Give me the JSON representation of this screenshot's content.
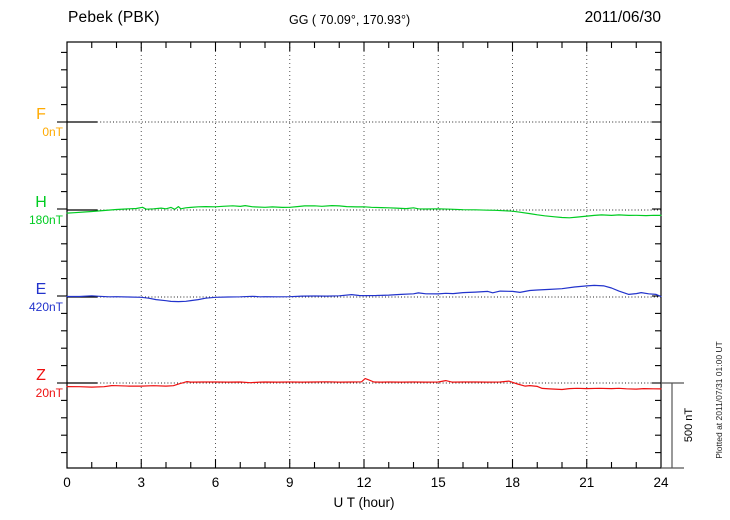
{
  "header": {
    "station_title": "Pebek (PBK)",
    "coords_label": "GG ( 70.09°, 170.93°)",
    "date": "2011/06/30"
  },
  "footer": {
    "plotted_at": "Plotted at 2011/07/31 01:00 UT"
  },
  "chart_data": {
    "type": "line",
    "title": "Pebek (PBK)",
    "subtitle": "GG ( 70.09°, 170.93°)",
    "date": "2011/06/30",
    "xlabel": "U T (hour)",
    "x_range": [
      0,
      24
    ],
    "x_ticks": [
      0,
      3,
      6,
      9,
      12,
      15,
      18,
      21,
      24
    ],
    "grid": "dotted vertical at 3h intervals, dotted horizontal baseline per component",
    "legend_position": "left margin, one colored label per stacked component",
    "scale_bar": {
      "label": "500 nT",
      "value_nT": 500
    },
    "value_note": "points are [hour UT, deviation in nT from that component baseline]",
    "series": [
      {
        "name": "F",
        "baseline_label": "0nT",
        "color": "#FFAA00",
        "points": []
      },
      {
        "name": "H",
        "baseline_label": "180nT",
        "color": "#00CC22",
        "points": [
          [
            0,
            -18
          ],
          [
            0.3,
            -16
          ],
          [
            0.7,
            -12
          ],
          [
            1,
            -9
          ],
          [
            1.5,
            -3
          ],
          [
            2,
            3
          ],
          [
            2.5,
            7
          ],
          [
            2.8,
            9
          ],
          [
            3.05,
            16
          ],
          [
            3.2,
            5
          ],
          [
            3.5,
            7
          ],
          [
            3.8,
            11
          ],
          [
            4,
            7
          ],
          [
            4.2,
            15
          ],
          [
            4.35,
            4
          ],
          [
            4.5,
            20
          ],
          [
            4.6,
            7
          ],
          [
            4.8,
            13
          ],
          [
            5,
            15
          ],
          [
            5.3,
            19
          ],
          [
            5.6,
            20
          ],
          [
            6,
            19
          ],
          [
            6.3,
            22
          ],
          [
            6.7,
            25
          ],
          [
            7,
            21
          ],
          [
            7.2,
            26
          ],
          [
            7.5,
            19
          ],
          [
            8,
            16
          ],
          [
            8.3,
            18
          ],
          [
            8.7,
            15
          ],
          [
            9,
            16
          ],
          [
            9.3,
            20
          ],
          [
            9.6,
            24
          ],
          [
            10,
            25
          ],
          [
            10.3,
            22
          ],
          [
            10.7,
            26
          ],
          [
            11,
            24
          ],
          [
            11.3,
            20
          ],
          [
            11.7,
            18
          ],
          [
            12,
            19
          ],
          [
            12.3,
            16
          ],
          [
            12.7,
            14
          ],
          [
            13,
            13
          ],
          [
            13.3,
            11
          ],
          [
            13.7,
            8
          ],
          [
            14,
            13
          ],
          [
            14.2,
            7
          ],
          [
            14.5,
            6
          ],
          [
            15,
            7
          ],
          [
            15.5,
            5
          ],
          [
            16,
            2
          ],
          [
            16.5,
            1
          ],
          [
            17,
            -1
          ],
          [
            17.3,
            -2
          ],
          [
            17.7,
            -5
          ],
          [
            18,
            -7
          ],
          [
            18.3,
            -13
          ],
          [
            18.7,
            -21
          ],
          [
            19,
            -28
          ],
          [
            19.3,
            -34
          ],
          [
            19.7,
            -40
          ],
          [
            20,
            -44
          ],
          [
            20.3,
            -46
          ],
          [
            20.6,
            -42
          ],
          [
            21,
            -36
          ],
          [
            21.3,
            -32
          ],
          [
            21.6,
            -29
          ],
          [
            22,
            -32
          ],
          [
            22.3,
            -29
          ],
          [
            22.7,
            -32
          ],
          [
            23,
            -31
          ],
          [
            23.4,
            -33
          ],
          [
            23.7,
            -31
          ],
          [
            24,
            -32
          ]
        ]
      },
      {
        "name": "E",
        "baseline_label": "420nT",
        "color": "#2233CC",
        "points": [
          [
            0,
            3
          ],
          [
            0.5,
            3
          ],
          [
            1,
            7
          ],
          [
            1.3,
            4
          ],
          [
            1.7,
            1
          ],
          [
            2,
            2
          ],
          [
            2.5,
            0
          ],
          [
            3,
            -2
          ],
          [
            3.3,
            -7
          ],
          [
            3.6,
            -15
          ],
          [
            4,
            -22
          ],
          [
            4.2,
            -26
          ],
          [
            4.5,
            -27
          ],
          [
            4.8,
            -25
          ],
          [
            5,
            -21
          ],
          [
            5.3,
            -15
          ],
          [
            5.6,
            -7
          ],
          [
            6,
            -2
          ],
          [
            6.5,
            0
          ],
          [
            7,
            1
          ],
          [
            7.5,
            4
          ],
          [
            7.8,
            1
          ],
          [
            8,
            2
          ],
          [
            8.5,
            1
          ],
          [
            9,
            2
          ],
          [
            9.5,
            5
          ],
          [
            10,
            6
          ],
          [
            10.5,
            5
          ],
          [
            11,
            7
          ],
          [
            11.5,
            14
          ],
          [
            11.8,
            9
          ],
          [
            12,
            8
          ],
          [
            12.5,
            9
          ],
          [
            13,
            11
          ],
          [
            13.5,
            15
          ],
          [
            14,
            19
          ],
          [
            14.2,
            24
          ],
          [
            14.5,
            19
          ],
          [
            15,
            18
          ],
          [
            15.3,
            22
          ],
          [
            15.6,
            20
          ],
          [
            16,
            26
          ],
          [
            16.5,
            29
          ],
          [
            17,
            33
          ],
          [
            17.2,
            25
          ],
          [
            17.5,
            35
          ],
          [
            18,
            33
          ],
          [
            18.3,
            27
          ],
          [
            18.7,
            38
          ],
          [
            19,
            41
          ],
          [
            19.5,
            45
          ],
          [
            20,
            49
          ],
          [
            20.5,
            59
          ],
          [
            21,
            65
          ],
          [
            21.3,
            68
          ],
          [
            21.7,
            65
          ],
          [
            22,
            53
          ],
          [
            22.3,
            35
          ],
          [
            22.7,
            15
          ],
          [
            23,
            20
          ],
          [
            23.2,
            26
          ],
          [
            23.5,
            19
          ],
          [
            23.8,
            15
          ],
          [
            24,
            3
          ]
        ]
      },
      {
        "name": "Z",
        "baseline_label": "20nT",
        "color": "#EE1111",
        "points": [
          [
            0,
            -21
          ],
          [
            0.5,
            -22
          ],
          [
            1,
            -24
          ],
          [
            1.5,
            -22
          ],
          [
            1.8,
            -15
          ],
          [
            2,
            -16
          ],
          [
            2.5,
            -18
          ],
          [
            3,
            -18
          ],
          [
            3.5,
            -16
          ],
          [
            4,
            -18
          ],
          [
            4.3,
            -16
          ],
          [
            4.55,
            -4
          ],
          [
            4.7,
            2
          ],
          [
            4.85,
            8
          ],
          [
            5,
            5
          ],
          [
            5.5,
            6
          ],
          [
            6,
            6
          ],
          [
            6.5,
            5
          ],
          [
            7,
            6
          ],
          [
            7.4,
            2
          ],
          [
            7.8,
            5
          ],
          [
            8,
            6
          ],
          [
            8.5,
            5
          ],
          [
            9,
            6
          ],
          [
            9.5,
            5
          ],
          [
            10,
            6
          ],
          [
            10.5,
            7
          ],
          [
            11,
            5
          ],
          [
            11.5,
            6
          ],
          [
            11.9,
            7
          ],
          [
            12.05,
            26
          ],
          [
            12.2,
            18
          ],
          [
            12.4,
            6
          ],
          [
            12.7,
            5
          ],
          [
            13,
            6
          ],
          [
            13.5,
            5
          ],
          [
            14,
            6
          ],
          [
            14.5,
            5
          ],
          [
            15,
            6
          ],
          [
            15.3,
            14
          ],
          [
            15.55,
            5
          ],
          [
            16,
            6
          ],
          [
            16.5,
            6
          ],
          [
            17,
            5
          ],
          [
            17.5,
            6
          ],
          [
            17.85,
            11
          ],
          [
            18,
            4
          ],
          [
            18.2,
            -6
          ],
          [
            18.5,
            -18
          ],
          [
            18.7,
            -15
          ],
          [
            19,
            -20
          ],
          [
            19.2,
            -32
          ],
          [
            19.5,
            -35
          ],
          [
            20,
            -38
          ],
          [
            20.3,
            -33
          ],
          [
            20.6,
            -31
          ],
          [
            21,
            -33
          ],
          [
            21.5,
            -31
          ],
          [
            22,
            -33
          ],
          [
            22.3,
            -31
          ],
          [
            22.6,
            -34
          ],
          [
            23,
            -36
          ],
          [
            23.3,
            -33
          ],
          [
            23.7,
            -34
          ],
          [
            24,
            -35
          ]
        ]
      }
    ]
  }
}
